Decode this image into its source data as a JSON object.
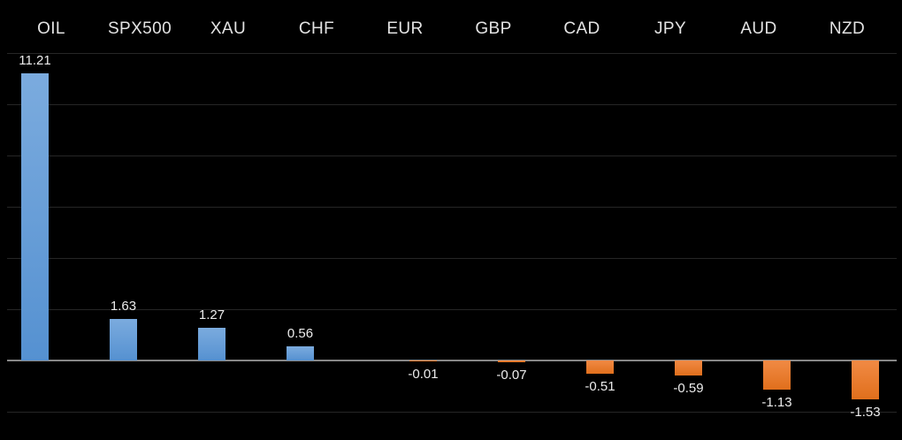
{
  "chart_data": {
    "type": "bar",
    "title": "",
    "xlabel": "",
    "ylabel": "",
    "categories": [
      "OIL",
      "SPX500",
      "XAU",
      "CHF",
      "EUR",
      "GBP",
      "CAD",
      "JPY",
      "AUD",
      "NZD"
    ],
    "values": [
      11.21,
      1.63,
      1.27,
      0.56,
      -0.01,
      -0.07,
      -0.51,
      -0.59,
      -1.13,
      -1.53
    ],
    "value_labels": [
      "11.21",
      "1.63",
      "1.27",
      "0.56",
      "-0.01",
      "-0.07",
      "-0.51",
      "-0.59",
      "-1.13",
      "-1.53"
    ],
    "ylim": [
      -2,
      12
    ],
    "gridline_values": [
      12,
      10,
      8,
      6,
      4,
      2,
      0,
      -2
    ],
    "grid": true,
    "legend_position": "none",
    "colors": {
      "background": "#000000",
      "positive_bar": "#5b9bd5",
      "positive_bar_gradient_top": "#7babde",
      "positive_bar_gradient_bottom": "#5591d1",
      "negative_bar": "#ed7d31",
      "negative_bar_gradient_top": "#f18a44",
      "negative_bar_gradient_bottom": "#e06f1c",
      "gridline": "#262626",
      "zero_line": "#878787",
      "category_label_text": "#e3e3e3",
      "value_label_text": "#ececec"
    }
  }
}
